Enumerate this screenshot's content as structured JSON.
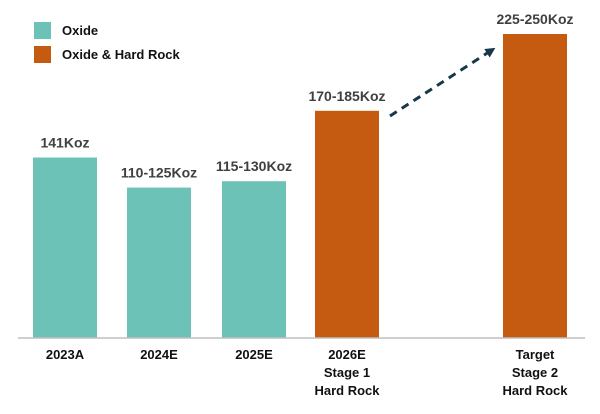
{
  "colors": {
    "oxide": "#6cc2b7",
    "oxide_hard_rock": "#c55a11",
    "axis": "#bfbfbf",
    "arrow": "#17384a"
  },
  "legend": [
    {
      "label": "Oxide",
      "color_key": "oxide"
    },
    {
      "label": "Oxide & Hard Rock",
      "color_key": "oxide_hard_rock"
    }
  ],
  "chart_data": {
    "type": "bar",
    "unit": "Koz",
    "categories": [
      [
        "2023A"
      ],
      [
        "2024E"
      ],
      [
        "2025E"
      ],
      [
        "2026E",
        "Stage 1",
        "Hard Rock"
      ],
      [
        "Target",
        "Stage 2",
        "Hard Rock"
      ]
    ],
    "values": [
      141,
      117.5,
      122.5,
      177.5,
      237.5
    ],
    "ranges": [
      null,
      [
        110,
        125
      ],
      [
        115,
        130
      ],
      [
        170,
        185
      ],
      [
        225,
        250
      ]
    ],
    "data_labels": [
      "141Koz",
      "110-125Koz",
      "115-130Koz",
      "170-185Koz",
      "225-250Koz"
    ],
    "series_by_bar": [
      "Oxide",
      "Oxide",
      "Oxide",
      "Oxide & Hard Rock",
      "Oxide & Hard Rock"
    ],
    "ylim": [
      0,
      237.5
    ],
    "grid": false,
    "legend_position": "top-left",
    "annotation": "dashed arrow from 2026E bar toward Target bar"
  }
}
